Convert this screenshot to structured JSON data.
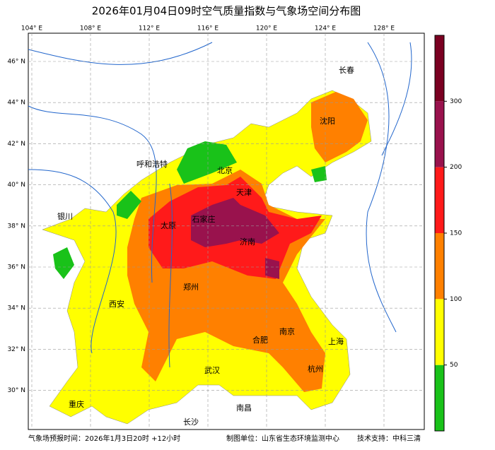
{
  "title": "2026年01月04日09时空气质量指数与气象场空间分布图",
  "longitude_labels": [
    "104° E",
    "108° E",
    "112° E",
    "116° E",
    "120° E",
    "124° E",
    "128° E"
  ],
  "latitude_labels": [
    "46° N",
    "44° N",
    "42° N",
    "40° N",
    "38° N",
    "36° N",
    "34° N",
    "32° N",
    "30° N"
  ],
  "cities": [
    "长春",
    "沈阳",
    "呼和浩特",
    "北京",
    "天津",
    "银川",
    "石家庄",
    "太原",
    "济南",
    "郑州",
    "西安",
    "南京",
    "合肥",
    "上海",
    "杭州",
    "武汉",
    "重庆",
    "南昌",
    "长沙"
  ],
  "colorbar": {
    "ticks": [
      50,
      100,
      150,
      200,
      300
    ],
    "colors": [
      "#19c219",
      "#ffff00",
      "#ff8000",
      "#ff1a1a",
      "#99124d",
      "#7a0021"
    ]
  },
  "footer": {
    "forecast_time": "气象场预报时间：2026年1月3日20时 +12小时",
    "producer": "制图单位：山东省生态环境监测中心",
    "support": "技术支持：中科三清"
  }
}
